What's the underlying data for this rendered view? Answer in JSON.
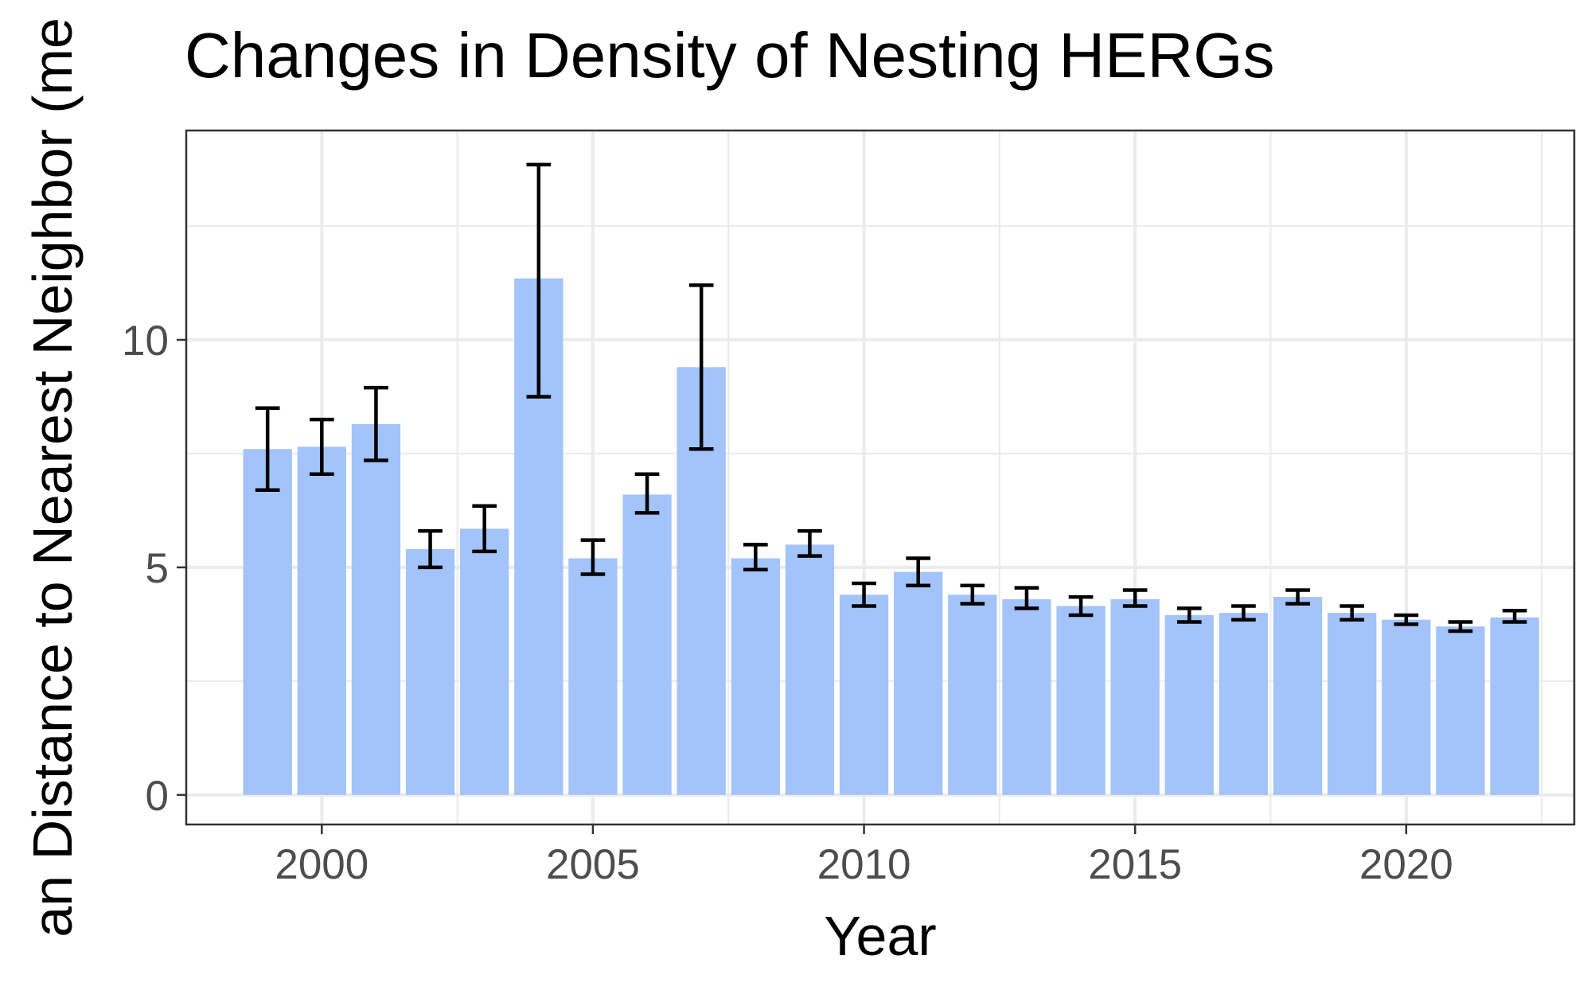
{
  "chart_data": {
    "type": "bar",
    "title": "Changes in Density of Nesting HERGs",
    "xlabel": "Year",
    "ylabel": "an Distance to Nearest Neighbor (me",
    "x_ticks": [
      2000,
      2005,
      2010,
      2015,
      2020
    ],
    "y_ticks": [
      0,
      5,
      10
    ],
    "xlim": [
      1997.5,
      2023.1
    ],
    "ylim": [
      -0.65,
      14.6
    ],
    "grid": true,
    "bar_color": "#a3c3fb",
    "error_bar_color": "#000000",
    "categories": [
      1999,
      2000,
      2001,
      2002,
      2003,
      2004,
      2005,
      2006,
      2007,
      2008,
      2009,
      2010,
      2011,
      2012,
      2013,
      2014,
      2015,
      2016,
      2017,
      2018,
      2019,
      2020,
      2021,
      2022
    ],
    "values": [
      7.6,
      7.65,
      8.15,
      5.4,
      5.85,
      11.35,
      5.2,
      6.6,
      9.4,
      5.2,
      5.5,
      4.4,
      4.9,
      4.4,
      4.3,
      4.15,
      4.3,
      3.95,
      4.0,
      4.35,
      4.0,
      3.85,
      3.7,
      3.9
    ],
    "error_low": [
      6.7,
      7.05,
      7.35,
      5.0,
      5.35,
      8.75,
      4.85,
      6.2,
      7.6,
      4.95,
      5.25,
      4.15,
      4.6,
      4.2,
      4.1,
      3.95,
      4.15,
      3.8,
      3.85,
      4.2,
      3.85,
      3.75,
      3.6,
      3.8
    ],
    "error_high": [
      8.5,
      8.25,
      8.95,
      5.8,
      6.35,
      13.85,
      5.6,
      7.05,
      11.2,
      5.5,
      5.8,
      4.65,
      5.2,
      4.6,
      4.55,
      4.35,
      4.5,
      4.1,
      4.15,
      4.5,
      4.15,
      3.95,
      3.8,
      4.05
    ]
  }
}
